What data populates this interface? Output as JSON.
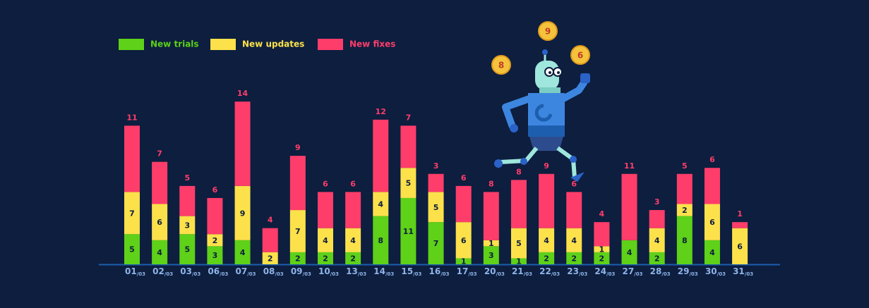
{
  "chart_data": {
    "type": "stacked-bar",
    "categories": [
      "01/03",
      "02/03",
      "03/03",
      "06/03",
      "07/03",
      "08/03",
      "09/03",
      "10/03",
      "13/03",
      "14/03",
      "15/03",
      "16/03",
      "17/03",
      "20/03",
      "21/03",
      "22/03",
      "23/03",
      "24/03",
      "27/03",
      "28/03",
      "29/03",
      "30/03",
      "31/03"
    ],
    "series": [
      {
        "name": "New trials",
        "color": "#5ed118",
        "values": [
          5,
          4,
          5,
          3,
          4,
          0,
          2,
          2,
          2,
          8,
          11,
          7,
          1,
          3,
          1,
          2,
          2,
          2,
          4,
          2,
          8,
          4,
          0
        ]
      },
      {
        "name": "New updates",
        "color": "#fce14b",
        "values": [
          7,
          6,
          3,
          2,
          9,
          2,
          7,
          4,
          4,
          4,
          5,
          5,
          6,
          1,
          5,
          4,
          4,
          1,
          0,
          4,
          2,
          6,
          6
        ]
      },
      {
        "name": "New fixes",
        "color": "#ff3d6a",
        "values": [
          11,
          7,
          5,
          6,
          14,
          4,
          9,
          6,
          6,
          12,
          7,
          3,
          6,
          8,
          8,
          9,
          6,
          4,
          11,
          3,
          5,
          6,
          1
        ]
      }
    ],
    "legend": "top-left"
  },
  "illustration": {
    "coins": [
      "8",
      "9",
      "6"
    ]
  }
}
